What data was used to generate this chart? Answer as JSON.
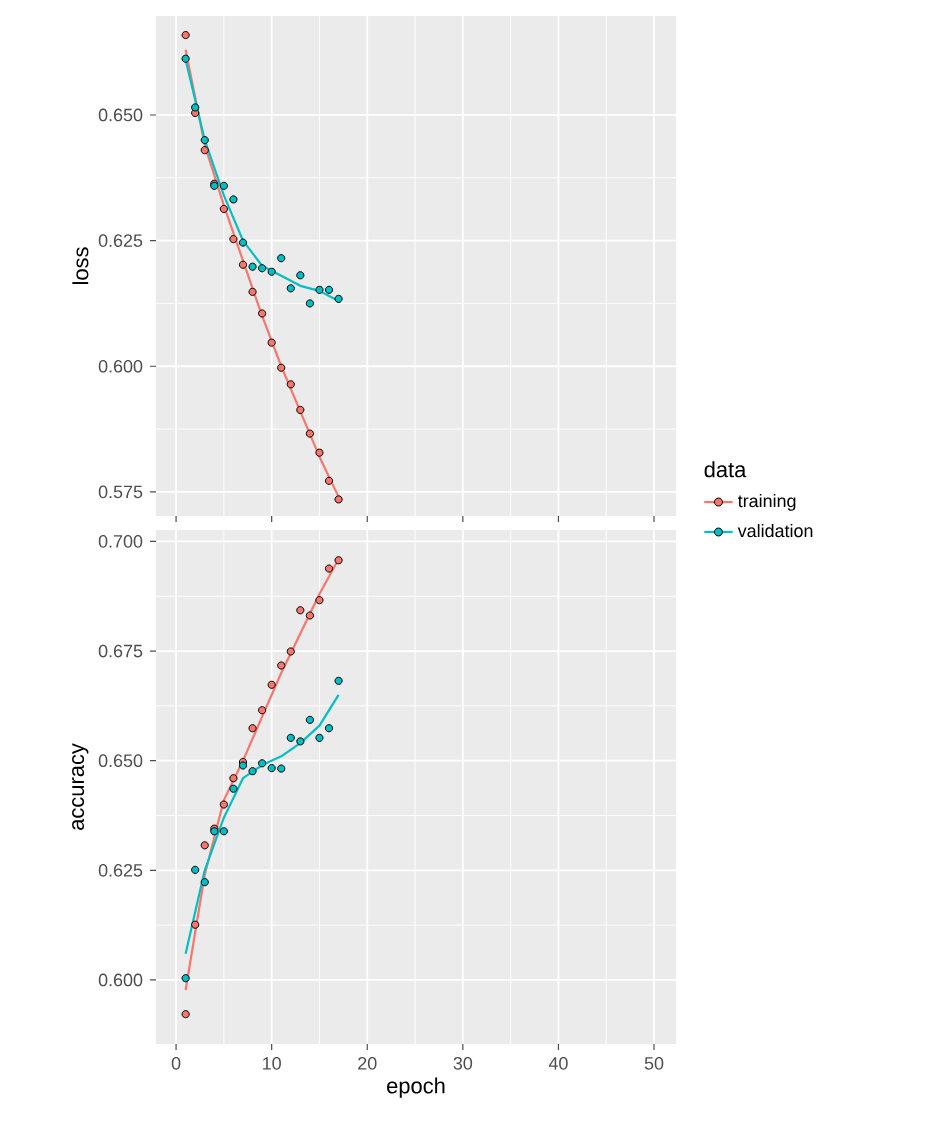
{
  "chart_data": [
    {
      "type": "scatter",
      "ylabel": "loss",
      "xlim": [
        -2.1,
        52.3
      ],
      "ylim": [
        0.5702,
        0.6697
      ],
      "xticks": [
        0,
        10,
        20,
        30,
        40,
        50
      ],
      "yticks": [
        0.575,
        {
          "value": 0.6,
          "label": "0.600"
        },
        0.625,
        {
          "value": 0.65,
          "label": "0.650"
        }
      ],
      "tick_labels": "y",
      "grid": true,
      "x": [
        1,
        2,
        3,
        4,
        5,
        6,
        7,
        8,
        9,
        10,
        11,
        12,
        13,
        14,
        15,
        16,
        17
      ],
      "series": [
        {
          "type": "scatter",
          "marker": "circle",
          "color": "#f8766d",
          "values": [
            0.6659,
            0.6504,
            0.643,
            0.6363,
            0.6313,
            0.6253,
            0.6202,
            0.6148,
            0.6105,
            0.6047,
            0.5997,
            0.5964,
            0.5913,
            0.5866,
            0.5828,
            0.5772,
            0.5735
          ]
        },
        {
          "type": "scatter",
          "marker": "circle",
          "color": "#00bfc4",
          "values": [
            0.6612,
            0.6515,
            0.645,
            0.6359,
            0.6359,
            0.6332,
            0.6246,
            0.6198,
            0.6195,
            0.6188,
            0.6215,
            0.6155,
            0.6181,
            0.6125,
            0.6152,
            0.6152,
            0.6134
          ]
        },
        {
          "type": "line",
          "color": "#f8766d",
          "x": [
            1,
            3,
            5,
            7,
            9,
            11,
            13,
            15,
            17
          ],
          "values": [
            0.663,
            0.644,
            0.632,
            0.621,
            0.61,
            0.6,
            0.591,
            0.582,
            0.574
          ]
        },
        {
          "type": "line",
          "color": "#00bfc4",
          "x": [
            1,
            3,
            5,
            7,
            9,
            11,
            13,
            15,
            17
          ],
          "values": [
            0.661,
            0.645,
            0.634,
            0.625,
            0.62,
            0.618,
            0.616,
            0.615,
            0.613
          ]
        }
      ]
    },
    {
      "type": "scatter",
      "xlabel": "epoch",
      "ylabel": "accuracy",
      "legend_title": "data",
      "legend": "right",
      "xlim": [
        -2.1,
        52.3
      ],
      "ylim": [
        0.5854,
        0.7026
      ],
      "xticks": [
        0,
        10,
        20,
        30,
        40,
        50
      ],
      "yticks": [
        {
          "value": 0.6,
          "label": "0.600"
        },
        0.625,
        {
          "value": 0.65,
          "label": "0.650"
        },
        0.675,
        {
          "value": 0.7,
          "label": "0.700"
        }
      ],
      "grid": true,
      "x": [
        1,
        2,
        3,
        4,
        5,
        6,
        7,
        8,
        9,
        10,
        11,
        12,
        13,
        14,
        15,
        16,
        17
      ],
      "series": [
        {
          "type": "scatter",
          "marker": "circle",
          "name": "training",
          "color": "#f8766d",
          "values": [
            0.5922,
            0.6126,
            0.6307,
            0.6345,
            0.64,
            0.646,
            0.6497,
            0.6574,
            0.6615,
            0.6673,
            0.6717,
            0.6749,
            0.6843,
            0.6831,
            0.6866,
            0.6938,
            0.6957
          ]
        },
        {
          "type": "scatter",
          "marker": "circle",
          "name": "validation",
          "color": "#00bfc4",
          "values": [
            0.6004,
            0.6251,
            0.6223,
            0.6339,
            0.6339,
            0.6436,
            0.6489,
            0.6476,
            0.6494,
            0.6483,
            0.6482,
            0.6552,
            0.6544,
            0.6593,
            0.6552,
            0.6574,
            0.6682
          ]
        },
        {
          "type": "line",
          "color": "#f8766d",
          "x": [
            1,
            3,
            5,
            7,
            9,
            11,
            13,
            15,
            17
          ],
          "values": [
            0.5977,
            0.624,
            0.641,
            0.65,
            0.66,
            0.67,
            0.679,
            0.688,
            0.696
          ]
        },
        {
          "type": "line",
          "color": "#00bfc4",
          "x": [
            1,
            3,
            5,
            7,
            9,
            11,
            13,
            15,
            17
          ],
          "values": [
            0.606,
            0.625,
            0.637,
            0.646,
            0.649,
            0.651,
            0.654,
            0.658,
            0.665
          ]
        }
      ]
    }
  ]
}
